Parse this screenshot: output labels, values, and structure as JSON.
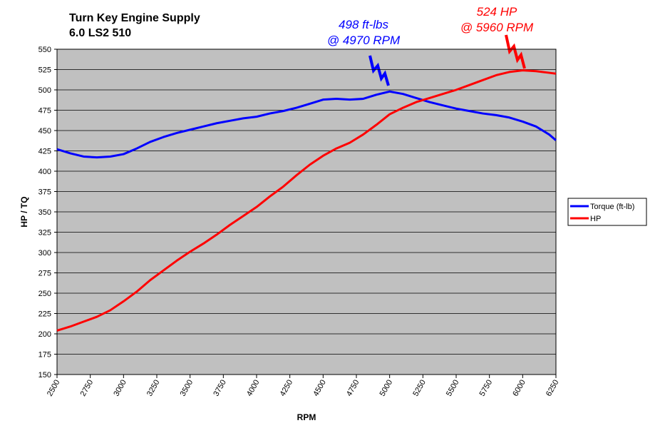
{
  "chart_data": {
    "type": "line",
    "title": "Turn Key Engine Supply",
    "subtitle": "6.0 LS2 510",
    "xlabel": "RPM",
    "ylabel": "HP / TQ",
    "x": [
      2500,
      2600,
      2700,
      2800,
      2900,
      3000,
      3100,
      3200,
      3300,
      3400,
      3500,
      3600,
      3700,
      3800,
      3900,
      4000,
      4100,
      4200,
      4300,
      4400,
      4500,
      4600,
      4700,
      4800,
      4900,
      5000,
      5100,
      5200,
      5300,
      5400,
      5500,
      5600,
      5700,
      5800,
      5900,
      6000,
      6100,
      6200,
      6250
    ],
    "series": [
      {
        "name": "Torque (ft-lb)",
        "color": "#0000ff",
        "values": [
          427,
          422,
          418,
          417,
          418,
          421,
          428,
          436,
          442,
          447,
          451,
          455,
          459,
          462,
          465,
          467,
          471,
          474,
          478,
          483,
          488,
          489,
          488,
          489,
          494,
          498,
          495,
          490,
          485,
          481,
          477,
          474,
          471,
          469,
          466,
          461,
          455,
          445,
          438
        ]
      },
      {
        "name": "HP",
        "color": "#ff0000",
        "values": [
          204,
          209,
          215,
          221,
          229,
          240,
          252,
          266,
          278,
          290,
          301,
          311,
          322,
          334,
          345,
          356,
          369,
          381,
          395,
          408,
          419,
          428,
          435,
          445,
          457,
          470,
          478,
          485,
          490,
          495,
          500,
          506,
          512,
          518,
          522,
          524,
          523,
          521,
          520
        ]
      }
    ],
    "xlim": [
      2500,
      6250
    ],
    "xticks": [
      2500,
      2750,
      3000,
      3250,
      3500,
      3750,
      4000,
      4250,
      4500,
      4750,
      5000,
      5250,
      5500,
      5750,
      6000,
      6250
    ],
    "ylim": [
      150,
      550
    ],
    "yticks": [
      150,
      175,
      200,
      225,
      250,
      275,
      300,
      325,
      350,
      375,
      400,
      425,
      450,
      475,
      500,
      525,
      550
    ],
    "grid": true,
    "legend": "right",
    "annotations": [
      {
        "lines": [
          "498 ft-lbs",
          "@ 4970 RPM"
        ],
        "color": "#0000ff"
      },
      {
        "lines": [
          "524 HP",
          "@ 5960 RPM"
        ],
        "color": "#ff0000"
      }
    ]
  }
}
